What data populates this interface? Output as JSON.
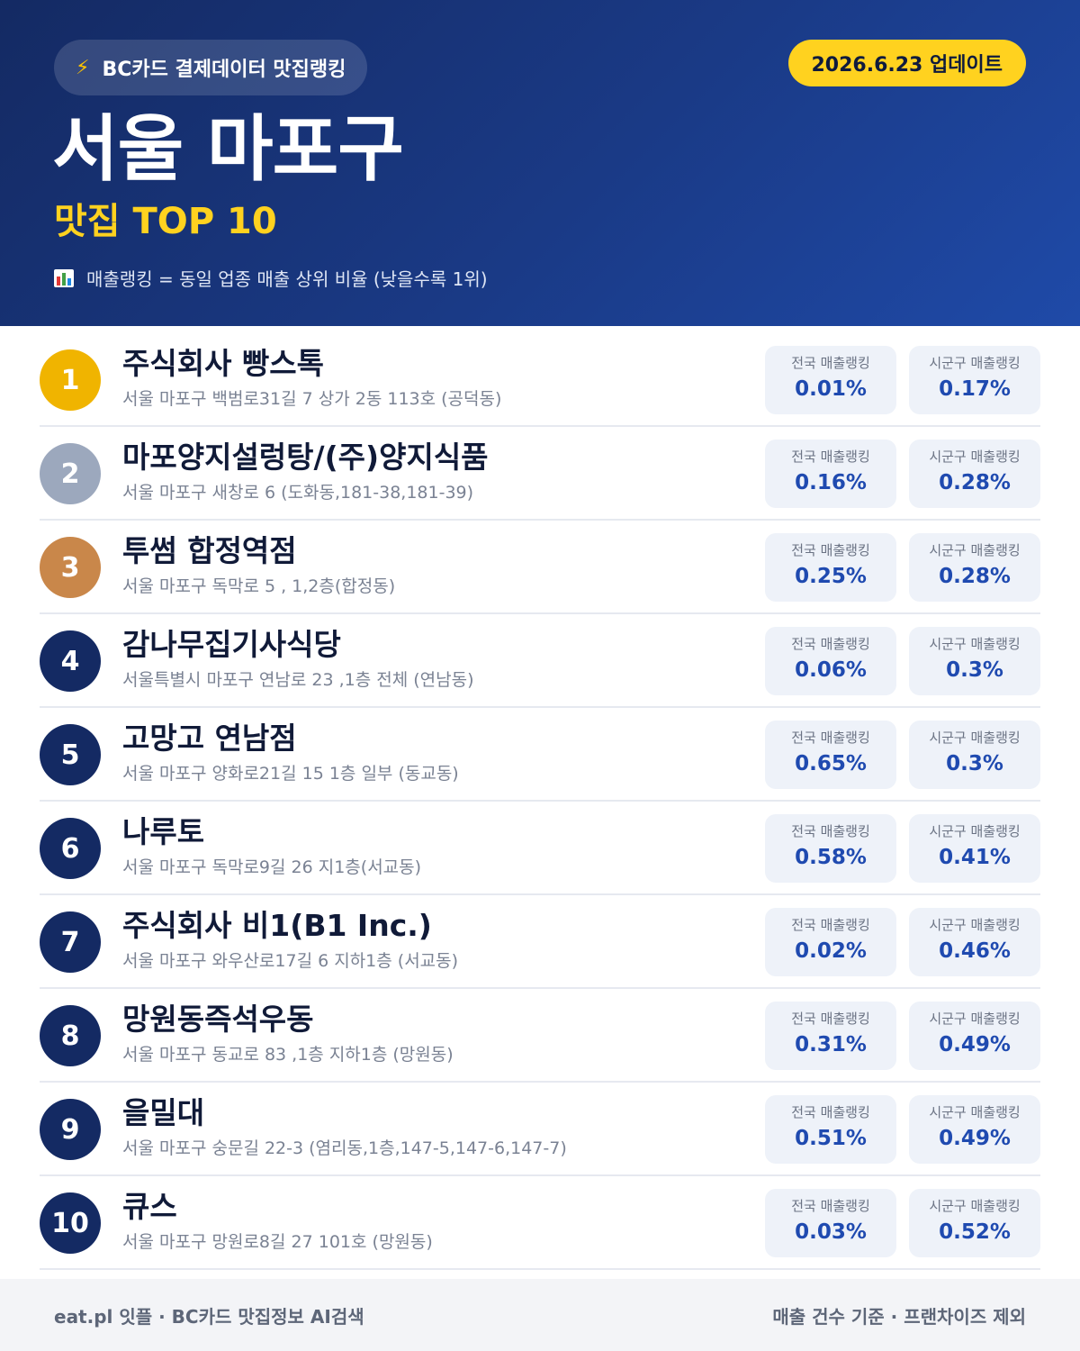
{
  "header": {
    "badge_icon": "lightning-icon",
    "badge_label": "BC카드 결제데이터 맛집랭킹",
    "update_label": "2026.6.23 업데이트",
    "title": "서울 마포구",
    "subtitle": "맛집 TOP 10",
    "note_icon": "bar-chart-icon",
    "note": "매출랭킹 = 동일 업종 매출 상위 비율 (낮을수록 1위)"
  },
  "labels": {
    "national": "전국 매출랭킹",
    "district": "시군구 매출랭킹"
  },
  "colors": {
    "header_bg": "#1a3a86",
    "accent_yellow": "#ffd21f",
    "rank1": "#f0b400",
    "rank2": "#9ca8bd",
    "rank3": "#c9874a",
    "rank_default": "#142a63",
    "value_blue": "#1f4ab0"
  },
  "restaurants": [
    {
      "rank": "1",
      "name": "주식회사 빵스톡",
      "address": "서울 마포구 백범로31길 7 상가 2동 113호 (공덕동)",
      "national": "0.01%",
      "district": "0.17%"
    },
    {
      "rank": "2",
      "name": "마포양지설렁탕/(주)양지식품",
      "address": "서울 마포구 새창로 6 (도화동,181-38,181-39)",
      "national": "0.16%",
      "district": "0.28%"
    },
    {
      "rank": "3",
      "name": "투썸 합정역점",
      "address": "서울 마포구 독막로 5 , 1,2층(합정동)",
      "national": "0.25%",
      "district": "0.28%"
    },
    {
      "rank": "4",
      "name": "감나무집기사식당",
      "address": "서울특별시 마포구 연남로 23 ,1층 전체 (연남동)",
      "national": "0.06%",
      "district": "0.3%"
    },
    {
      "rank": "5",
      "name": "고망고 연남점",
      "address": "서울 마포구 양화로21길 15 1층 일부 (동교동)",
      "national": "0.65%",
      "district": "0.3%"
    },
    {
      "rank": "6",
      "name": "나루토",
      "address": "서울 마포구 독막로9길 26 지1층(서교동)",
      "national": "0.58%",
      "district": "0.41%"
    },
    {
      "rank": "7",
      "name": "주식회사 비1(B1 Inc.)",
      "address": "서울 마포구 와우산로17길 6 지하1층 (서교동)",
      "national": "0.02%",
      "district": "0.46%"
    },
    {
      "rank": "8",
      "name": "망원동즉석우동",
      "address": "서울 마포구 동교로 83 ,1층 지하1층 (망원동)",
      "national": "0.31%",
      "district": "0.49%"
    },
    {
      "rank": "9",
      "name": "을밀대",
      "address": "서울 마포구 숭문길 22-3 (염리동,1층,147-5,147-6,147-7)",
      "national": "0.51%",
      "district": "0.49%"
    },
    {
      "rank": "10",
      "name": "큐스",
      "address": "서울 마포구 망원로8길 27 101호 (망원동)",
      "national": "0.03%",
      "district": "0.52%"
    }
  ],
  "footer": {
    "left": "eat.pl 잇플 · BC카드 맛집정보 AI검색",
    "right": "매출 건수 기준 · 프랜차이즈 제외"
  }
}
